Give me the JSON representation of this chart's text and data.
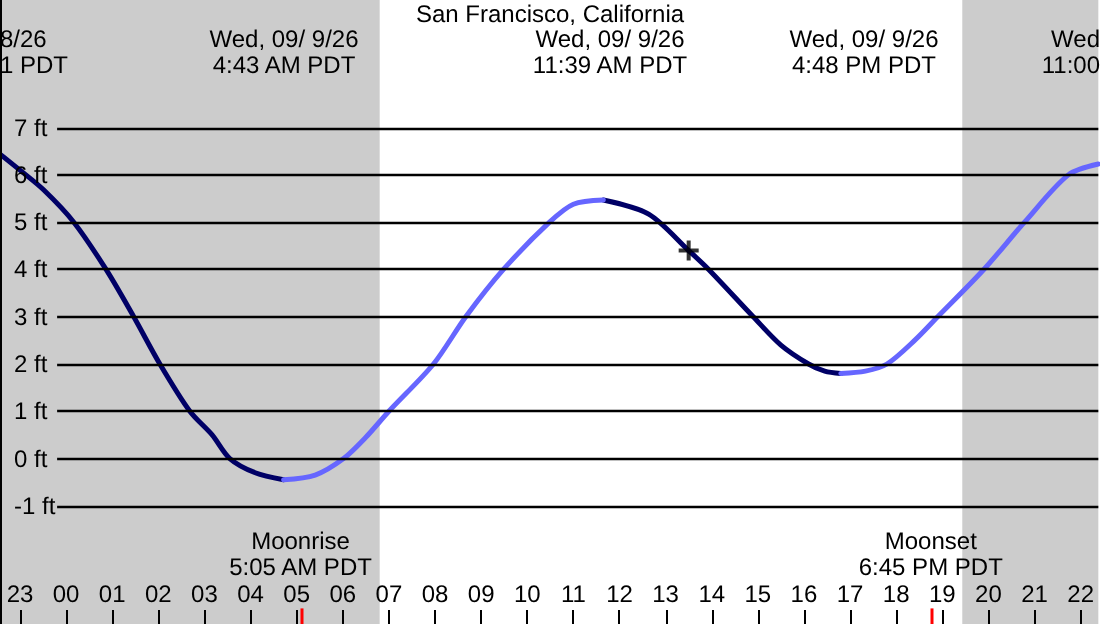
{
  "chart_data": {
    "type": "line",
    "title": "San Francisco, California",
    "xlim": [
      "--09-08T22:34",
      "--09-09T22:23"
    ],
    "ylim": [
      -3.5,
      9.7
    ],
    "xticks": [
      {
        "value": "--09-08T23:00",
        "label": "23"
      },
      {
        "value": "--09-09T00:00",
        "label": "00"
      },
      {
        "value": "--09-09T01:00",
        "label": "01"
      },
      {
        "value": "--09-09T02:00",
        "label": "02"
      },
      {
        "value": "--09-09T03:00",
        "label": "03"
      },
      {
        "value": "--09-09T04:00",
        "label": "04"
      },
      {
        "value": "--09-09T05:00",
        "label": "05"
      },
      {
        "value": "--09-09T06:00",
        "label": "06"
      },
      {
        "value": "--09-09T07:00",
        "label": "07"
      },
      {
        "value": "--09-09T08:00",
        "label": "08"
      },
      {
        "value": "--09-09T09:00",
        "label": "09"
      },
      {
        "value": "--09-09T10:00",
        "label": "10"
      },
      {
        "value": "--09-09T11:00",
        "label": "11"
      },
      {
        "value": "--09-09T12:00",
        "label": "12"
      },
      {
        "value": "--09-09T13:00",
        "label": "13"
      },
      {
        "value": "--09-09T14:00",
        "label": "14"
      },
      {
        "value": "--09-09T15:00",
        "label": "15"
      },
      {
        "value": "--09-09T16:00",
        "label": "16"
      },
      {
        "value": "--09-09T17:00",
        "label": "17"
      },
      {
        "value": "--09-09T18:00",
        "label": "18"
      },
      {
        "value": "--09-09T19:00",
        "label": "19"
      },
      {
        "value": "--09-09T20:00",
        "label": "20"
      },
      {
        "value": "--09-09T21:00",
        "label": "21"
      },
      {
        "value": "--09-09T22:00",
        "label": "22"
      }
    ],
    "yticks": [
      {
        "value": -1,
        "label": "-1 ft"
      },
      {
        "value": 0,
        "label": "0 ft"
      },
      {
        "value": 1,
        "label": "1 ft"
      },
      {
        "value": 2,
        "label": "2 ft"
      },
      {
        "value": 3,
        "label": "3 ft"
      },
      {
        "value": 4,
        "label": "4 ft"
      },
      {
        "value": 5,
        "label": "5 ft"
      },
      {
        "value": 6,
        "label": "6 ft"
      },
      {
        "value": 7,
        "label": "7 ft"
      }
    ],
    "grid": "y",
    "marker": "none",
    "line_style": "solid",
    "series": [
      {
        "color": "#000066",
        "x": [
          "--09-08T22:34",
          "--09-08T23:00",
          "--09-08T23:31",
          "--09-09T00:10",
          "--09-09T00:52",
          "--09-09T01:28",
          "--09-09T02:02",
          "--09-09T02:41",
          "--09-09T03:10",
          "--09-09T03:33",
          "--09-09T04:06",
          "--09-09T04:43",
          null,
          "--09-09T11:39",
          "--09-09T12:38",
          "--09-09T13:30",
          "--09-09T13:56",
          "--09-09T14:54",
          "--09-09T15:30",
          "--09-09T16:06",
          "--09-09T16:27",
          "--09-09T16:48"
        ],
        "values": [
          6.44,
          6.1,
          5.68,
          5.0,
          4.0,
          3.0,
          2.0,
          1.0,
          0.5,
          0.0,
          -0.3,
          -0.45,
          null,
          5.47,
          5.17,
          4.4,
          4.0,
          3.0,
          2.4,
          2.0,
          1.85,
          1.8
        ]
      },
      {
        "color": "#6666ff",
        "x": [
          "--09-09T04:43",
          "--09-09T05:24",
          "--09-09T06:01",
          "--09-09T06:30",
          "--09-09T07:00",
          "--09-09T07:58",
          "--09-09T08:40",
          "--09-09T09:29",
          "--09-09T10:29",
          "--09-09T11:00",
          "--09-09T11:39",
          null,
          "--09-09T16:48",
          "--09-09T17:20",
          "--09-09T17:48",
          "--09-09T18:24",
          "--09-09T18:54",
          "--09-09T19:54",
          "--09-09T20:47",
          "--09-09T21:44",
          "--09-09T22:23"
        ],
        "values": [
          -0.45,
          -0.35,
          0.0,
          0.45,
          1.0,
          2.0,
          3.0,
          4.0,
          5.0,
          5.38,
          5.47,
          null,
          1.8,
          1.85,
          2.0,
          2.5,
          3.0,
          4.0,
          5.0,
          6.0,
          6.23
        ]
      },
      {
        "type": "scatter",
        "marker": "cross",
        "color": "#000000",
        "x": [
          "--09-09T13:30"
        ],
        "values": [
          4.4
        ]
      }
    ],
    "bands": [
      {
        "axis": "x",
        "from": "--09-08T22:34",
        "to": "--09-09T06:48",
        "color": "#cccccc"
      },
      {
        "axis": "x",
        "from": "--09-09T19:26",
        "to": "--09-09T22:23",
        "color": "#cccccc"
      }
    ],
    "ref_lines": [
      {
        "axis": "x",
        "value": "--09-09T05:05",
        "label": "Moonrise\n5:05 AM PDT",
        "color": "#ff0000"
      },
      {
        "axis": "x",
        "value": "--09-09T18:45",
        "label": "Moonset\n6:45 PM PDT",
        "color": "#ff0000"
      }
    ],
    "annotations": [
      "8/26\n1 PDT",
      "Wed, 09/ 9/26\n4:43 AM PDT",
      "Wed, 09/ 9/26\n11:39 AM PDT",
      "Wed, 09/ 9/26\n4:48 PM PDT",
      "Wed\n11:00"
    ]
  }
}
